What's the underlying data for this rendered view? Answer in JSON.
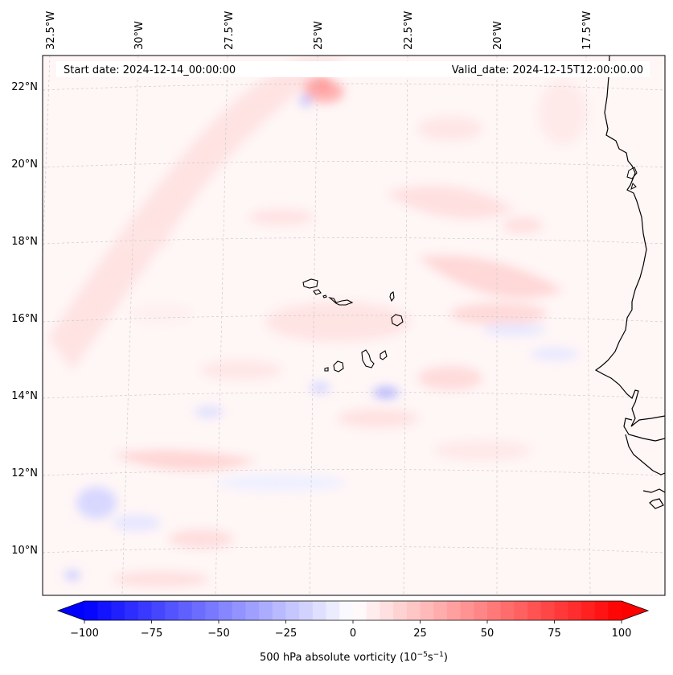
{
  "header": {
    "start_date": "Start date: 2024-12-14_00:00:00",
    "valid_date": "Valid_date: 2024-12-15T12:00:00.00"
  },
  "longitude_labels": [
    "32.5°W",
    "30°W",
    "27.5°W",
    "25°W",
    "22.5°W",
    "20°W",
    "17.5°W"
  ],
  "latitude_labels": [
    "22°N",
    "20°N",
    "18°N",
    "16°N",
    "14°N",
    "12°N",
    "10°N"
  ],
  "colorbar": {
    "label_main": "500 hPa absolute vorticity (10",
    "label_exp1": "−5",
    "label_mid": "s",
    "label_exp2": "−1",
    "label_end": ")",
    "min": -100,
    "max": 100,
    "ticks": [
      "−100",
      "−75",
      "−50",
      "−25",
      "0",
      "25",
      "50",
      "75",
      "100"
    ],
    "levels": 40,
    "colors": {
      "negative": "#0000ff",
      "neutral": "#ffffff",
      "positive": "#ff0000"
    }
  },
  "map": {
    "coastline_color": "#000000",
    "gridline_color": "#cccccc",
    "islands": [
      "Santo Antão",
      "São Vicente",
      "Santa Luzia",
      "São Nicolau",
      "Sal",
      "Boa Vista",
      "Maio",
      "Santiago",
      "Fogo",
      "Brava"
    ]
  }
}
